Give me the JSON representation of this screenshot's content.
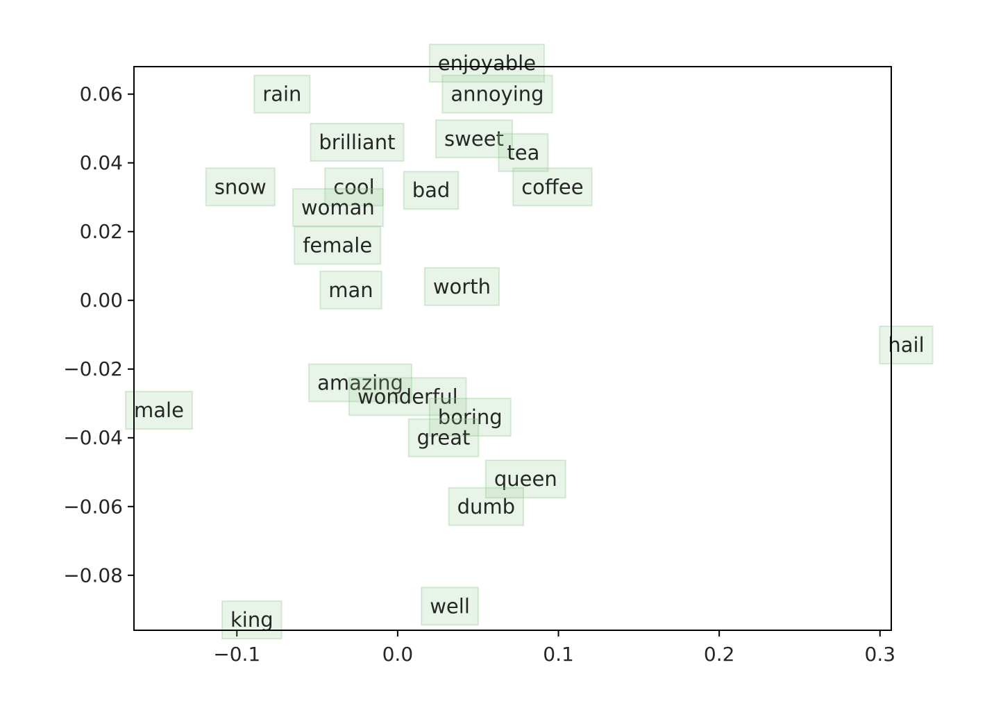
{
  "chart_data": {
    "type": "scatter",
    "title": "",
    "xlabel": "",
    "ylabel": "",
    "xlim": [
      -0.164,
      0.307
    ],
    "ylim": [
      -0.096,
      0.068
    ],
    "grid": false,
    "legend": "none",
    "x_ticks": [
      {
        "value": -0.1,
        "label": "−0.1"
      },
      {
        "value": 0.0,
        "label": "0.0"
      },
      {
        "value": 0.1,
        "label": "0.1"
      },
      {
        "value": 0.2,
        "label": "0.2"
      },
      {
        "value": 0.3,
        "label": "0.3"
      }
    ],
    "y_ticks": [
      {
        "value": 0.06,
        "label": "0.06"
      },
      {
        "value": 0.04,
        "label": "0.04"
      },
      {
        "value": 0.02,
        "label": "0.02"
      },
      {
        "value": 0.0,
        "label": "0.00"
      },
      {
        "value": -0.02,
        "label": "−0.02"
      },
      {
        "value": -0.04,
        "label": "−0.04"
      },
      {
        "value": -0.06,
        "label": "−0.06"
      },
      {
        "value": -0.08,
        "label": "−0.08"
      }
    ],
    "label_box_color": "#90c890",
    "points": [
      {
        "word": "enjoyable",
        "x": 0.025,
        "y": 0.069
      },
      {
        "word": "annoying",
        "x": 0.033,
        "y": 0.06
      },
      {
        "word": "rain",
        "x": -0.084,
        "y": 0.06
      },
      {
        "word": "sweet",
        "x": 0.029,
        "y": 0.047
      },
      {
        "word": "tea",
        "x": 0.068,
        "y": 0.043
      },
      {
        "word": "brilliant",
        "x": -0.049,
        "y": 0.046
      },
      {
        "word": "snow",
        "x": -0.114,
        "y": 0.033
      },
      {
        "word": "cool",
        "x": -0.04,
        "y": 0.033
      },
      {
        "word": "bad",
        "x": 0.009,
        "y": 0.032
      },
      {
        "word": "coffee",
        "x": 0.077,
        "y": 0.033
      },
      {
        "word": "woman",
        "x": -0.06,
        "y": 0.027
      },
      {
        "word": "female",
        "x": -0.059,
        "y": 0.016
      },
      {
        "word": "man",
        "x": -0.043,
        "y": 0.003
      },
      {
        "word": "worth",
        "x": 0.022,
        "y": 0.004
      },
      {
        "word": "hail",
        "x": 0.305,
        "y": -0.013
      },
      {
        "word": "amazing",
        "x": -0.05,
        "y": -0.024
      },
      {
        "word": "wonderful",
        "x": -0.025,
        "y": -0.028
      },
      {
        "word": "male",
        "x": -0.164,
        "y": -0.032
      },
      {
        "word": "boring",
        "x": 0.025,
        "y": -0.034
      },
      {
        "word": "great",
        "x": 0.012,
        "y": -0.04
      },
      {
        "word": "queen",
        "x": 0.06,
        "y": -0.052
      },
      {
        "word": "dumb",
        "x": 0.037,
        "y": -0.06
      },
      {
        "word": "well",
        "x": 0.02,
        "y": -0.089
      },
      {
        "word": "king",
        "x": -0.104,
        "y": -0.093
      }
    ]
  }
}
